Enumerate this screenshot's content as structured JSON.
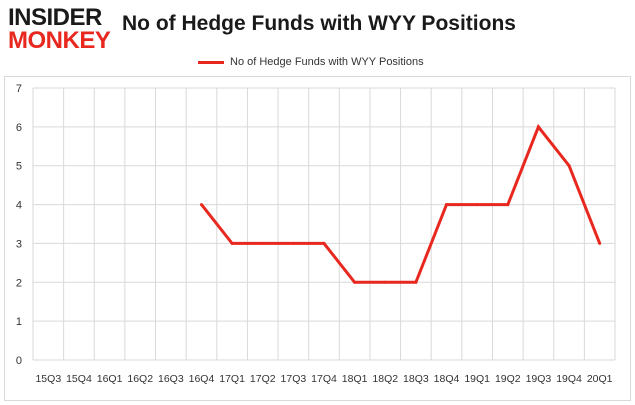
{
  "header": {
    "logo_top": "INSIDER",
    "logo_bottom": "MONKEY"
  },
  "chart_data": {
    "type": "line",
    "title": "No of Hedge Funds with WYY Positions",
    "xlabel": "",
    "ylabel": "",
    "ylim": [
      0,
      7
    ],
    "yticks": [
      0,
      1,
      2,
      3,
      4,
      5,
      6,
      7
    ],
    "categories": [
      "15Q3",
      "15Q4",
      "16Q1",
      "16Q2",
      "16Q3",
      "16Q4",
      "17Q1",
      "17Q2",
      "17Q3",
      "17Q4",
      "18Q1",
      "18Q2",
      "18Q3",
      "18Q4",
      "19Q1",
      "19Q2",
      "19Q3",
      "19Q4",
      "20Q1"
    ],
    "series": [
      {
        "name": "No of Hedge Funds with WYY Positions",
        "values": [
          null,
          null,
          null,
          null,
          null,
          4,
          3,
          3,
          3,
          3,
          2,
          2,
          2,
          4,
          4,
          4,
          6,
          5,
          3
        ]
      }
    ],
    "grid": true,
    "legend_position": "top-center",
    "line_color": "#e8281e",
    "grid_color": "#d9d9d9"
  }
}
